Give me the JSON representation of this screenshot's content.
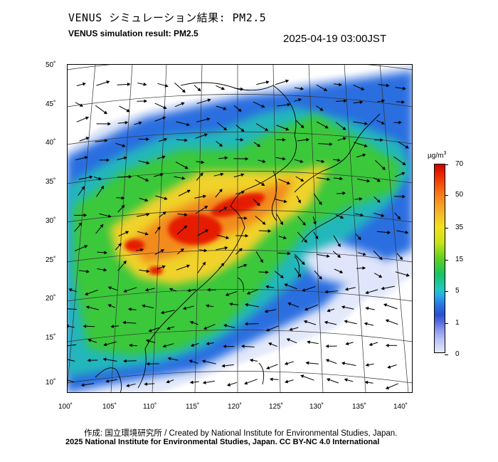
{
  "header": {
    "title_ja": "VENUS シミュレーション結果: PM2.5",
    "title_en": "VENUS simulation result: PM2.5",
    "timestamp": "2025-04-19 03:00JST"
  },
  "map": {
    "latitude_labels": [
      "50˚",
      "45˚",
      "40˚",
      "35˚",
      "30˚",
      "25˚",
      "20˚",
      "15˚",
      "10˚"
    ],
    "longitude_labels": [
      "100˚",
      "105˚",
      "110˚",
      "115˚",
      "120˚",
      "125˚",
      "130˚",
      "135˚",
      "140˚"
    ],
    "lat_range": [
      9,
      50
    ],
    "lon_range": [
      100,
      141
    ]
  },
  "colorbar": {
    "unit_label": "µg/m",
    "unit_superscript": "3",
    "tick_labels": [
      "70",
      "50",
      "35",
      "15",
      "5",
      "1",
      "0"
    ]
  },
  "footer": {
    "credit": "作成: 国立環境研究所 / Created by National Institute for Environmental Studies, Japan.",
    "copyright": "2025 National Institute for Environmental Studies, Japan. CC BY-NC 4.0 International"
  },
  "colors": {
    "very_high": "#e61e00",
    "high": "#f0c020",
    "medium": "#3ac83a",
    "low": "#2a6ee0",
    "very_low": "#e8ecfb"
  }
}
